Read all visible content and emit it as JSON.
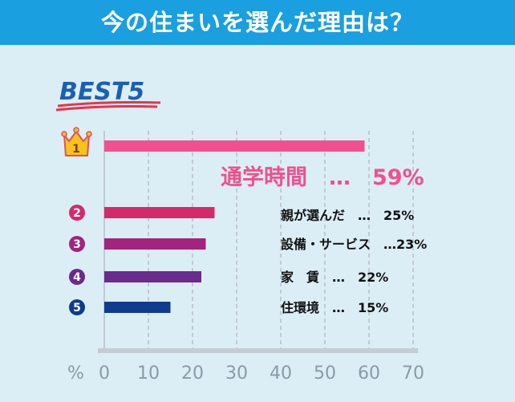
{
  "header": {
    "title": "今の住まいを選んだ理由は？"
  },
  "badge": {
    "text": "BEST5"
  },
  "axis": {
    "unit": "%"
  },
  "chart_data": {
    "type": "bar",
    "orientation": "horizontal",
    "xlim": [
      0,
      70
    ],
    "ticks": [
      "0",
      "10",
      "20",
      "30",
      "40",
      "50",
      "60",
      "70"
    ],
    "grid": true,
    "items": [
      {
        "rank": "1",
        "label": "通学時間　…　59%",
        "value": 59,
        "color": "#f0508f"
      },
      {
        "rank": "2",
        "label": "親が選んだ　…　25%",
        "value": 25,
        "color": "#d42a6c"
      },
      {
        "rank": "3",
        "label": "設備・サービス　…23%",
        "value": 23,
        "color": "#a3237f"
      },
      {
        "rank": "4",
        "label": "家　賃　…　22%",
        "value": 22,
        "color": "#6a2a8e"
      },
      {
        "rank": "5",
        "label": "住環境　…　15%",
        "value": 15,
        "color": "#0e3b8e"
      }
    ]
  }
}
